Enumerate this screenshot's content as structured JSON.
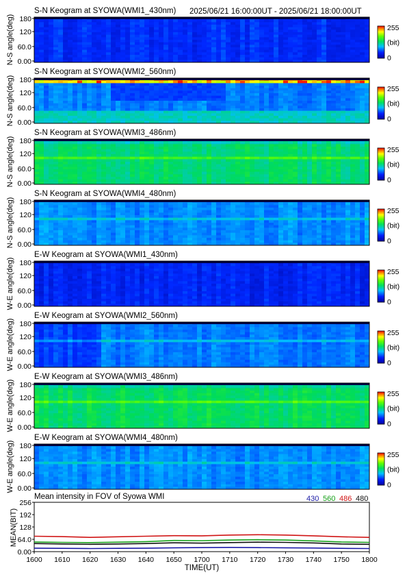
{
  "header": {
    "range_text": "2025/06/21 16:00:00UT - 2025/06/21 18:00:00UT"
  },
  "colorbar": {
    "max_label": "255",
    "unit_label": "(bit)",
    "min_label": "0"
  },
  "keograms": [
    {
      "title": "S-N Keogram at SYOWA(WMI1_430nm)",
      "ylabel": "N-S angle(deg)",
      "yticks": [
        "180",
        "120",
        "60.0",
        "0.00"
      ],
      "base_level": 0.18,
      "variation": "weak"
    },
    {
      "title": "S-N Keogram at SYOWA(WMI2_560nm)",
      "ylabel": "N-S angle(deg)",
      "yticks": [
        "180",
        "120",
        "60.0",
        "0.00"
      ],
      "base_level": 0.28,
      "variation": "strong-top-edge"
    },
    {
      "title": "S-N Keogram at SYOWA(WMI3_486nm)",
      "ylabel": "N-S angle(deg)",
      "yticks": [
        "180",
        "120",
        "60.0",
        "0.00"
      ],
      "base_level": 0.5,
      "variation": "green-band"
    },
    {
      "title": "S-N Keogram at SYOWA(WMI4_480nm)",
      "ylabel": "N-S angle(deg)",
      "yticks": [
        "180",
        "120",
        "60.0",
        "0.00"
      ],
      "base_level": 0.3,
      "variation": "blue-band"
    },
    {
      "title": "E-W Keogram at SYOWA(WMI1_430nm)",
      "ylabel": "W-E angle(deg)",
      "yticks": [
        "180",
        "120",
        "60.0",
        "0.00"
      ],
      "base_level": 0.16,
      "variation": "weak"
    },
    {
      "title": "E-W Keogram at SYOWA(WMI2_560nm)",
      "ylabel": "W-E angle(deg)",
      "yticks": [
        "180",
        "120",
        "60.0",
        "0.00"
      ],
      "base_level": 0.28,
      "variation": "blue-band"
    },
    {
      "title": "E-W Keogram at SYOWA(WMI3_486nm)",
      "ylabel": "W-E angle(deg)",
      "yticks": [
        "180",
        "120",
        "60.0",
        "0.00"
      ],
      "base_level": 0.52,
      "variation": "green-band"
    },
    {
      "title": "E-W Keogram at SYOWA(WMI4_480nm)",
      "ylabel": "W-E angle(deg)",
      "yticks": [
        "180",
        "120",
        "60.0",
        "0.00"
      ],
      "base_level": 0.3,
      "variation": "blue-band"
    }
  ],
  "chart_data": {
    "type": "line",
    "title": "Mean intensity in FOV of Syowa WMI",
    "xlabel": "TIME(UT)",
    "ylabel": "MEAN(BIT)",
    "xlim": [
      0,
      120
    ],
    "ylim": [
      0,
      256
    ],
    "xtick_labels": [
      "1600",
      "1610",
      "1620",
      "1630",
      "1640",
      "1650",
      "1700",
      "1710",
      "1720",
      "1730",
      "1740",
      "1750",
      "1800"
    ],
    "ytick_labels": [
      "256",
      "192",
      "128",
      "64.0",
      "0.00"
    ],
    "ytick_values": [
      256,
      192,
      128,
      64,
      0
    ],
    "x": [
      0,
      10,
      20,
      30,
      40,
      50,
      60,
      70,
      80,
      90,
      100,
      110,
      120
    ],
    "legend_position": "top-right",
    "series": [
      {
        "name": "430",
        "color": "#1a1aa6",
        "values": [
          18,
          17,
          16,
          17,
          18,
          20,
          21,
          22,
          21,
          20,
          19,
          17,
          16
        ]
      },
      {
        "name": "560",
        "color": "#16a01a",
        "values": [
          50,
          48,
          47,
          49,
          52,
          58,
          57,
          60,
          62,
          60,
          56,
          50,
          48
        ]
      },
      {
        "name": "486",
        "color": "#d01414",
        "values": [
          80,
          78,
          74,
          77,
          80,
          83,
          82,
          86,
          88,
          86,
          82,
          77,
          74
        ]
      },
      {
        "name": "480",
        "color": "#111111",
        "values": [
          42,
          40,
          38,
          40,
          42,
          46,
          44,
          47,
          49,
          48,
          45,
          40,
          38
        ]
      }
    ]
  }
}
